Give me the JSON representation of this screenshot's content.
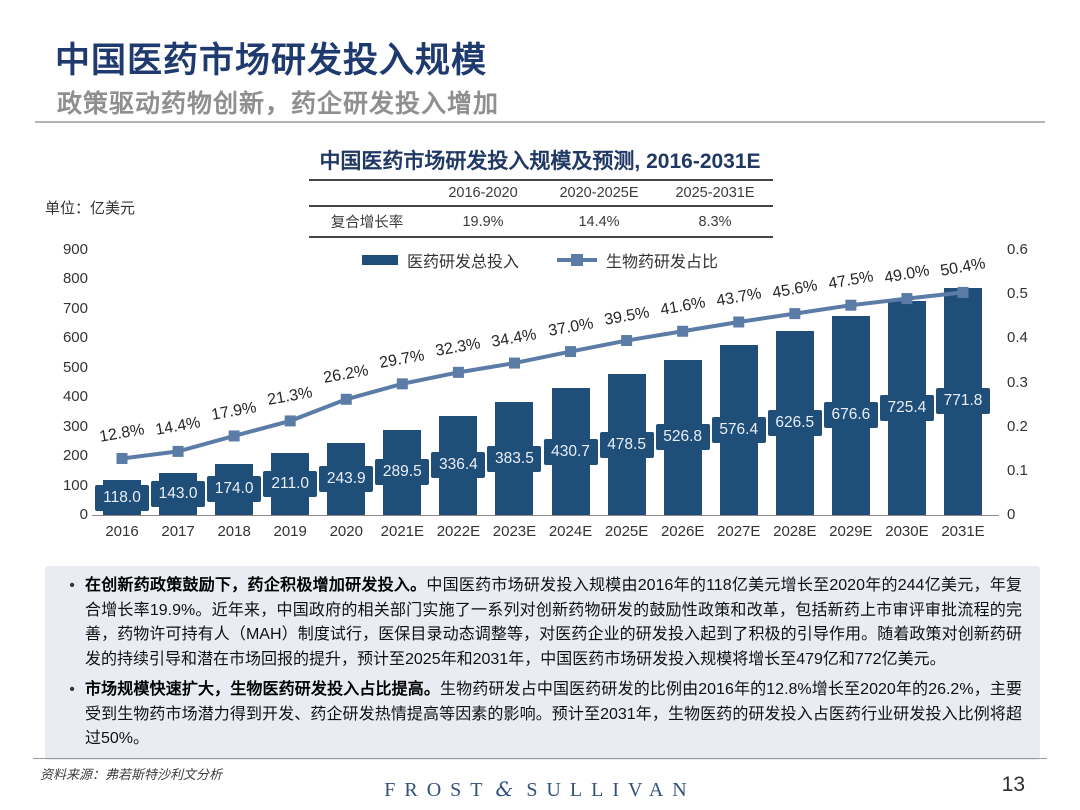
{
  "header": {
    "title": "中国医药市场研发投入规模",
    "subtitle": "政策驱动药物创新，药企研发投入增加"
  },
  "chart": {
    "title": "中国医药市场研发投入规模及预测, 2016-2031E",
    "unit_label": "单位：亿美元",
    "legend": {
      "bar_label": "医药研发总投入",
      "line_label": "生物药研发占比"
    },
    "cagr_table": {
      "row_header": "复合增长率",
      "columns": [
        "2016-2020",
        "2020-2025E",
        "2025-2031E"
      ],
      "values": [
        "19.9%",
        "14.4%",
        "8.3%"
      ]
    }
  },
  "chart_data": {
    "type": "bar",
    "title": "中国医药市场研发投入规模及预测, 2016-2031E",
    "categories": [
      "2016",
      "2017",
      "2018",
      "2019",
      "2020",
      "2021E",
      "2022E",
      "2023E",
      "2024E",
      "2025E",
      "2026E",
      "2027E",
      "2028E",
      "2029E",
      "2030E",
      "2031E"
    ],
    "series": [
      {
        "name": "医药研发总投入",
        "type": "bar",
        "axis": "left",
        "values": [
          118.0,
          143.0,
          174.0,
          211.0,
          243.9,
          289.5,
          336.4,
          383.5,
          430.7,
          478.5,
          526.8,
          576.4,
          626.5,
          676.6,
          725.4,
          771.8
        ],
        "labels": [
          "118.0",
          "143.0",
          "174.0",
          "211.0",
          "243.9",
          "289.5",
          "336.4",
          "383.5",
          "430.7",
          "478.5",
          "526.8",
          "576.4",
          "626.5",
          "676.6",
          "725.4",
          "771.8"
        ]
      },
      {
        "name": "生物药研发占比",
        "type": "line",
        "axis": "right",
        "values": [
          0.128,
          0.144,
          0.179,
          0.213,
          0.262,
          0.297,
          0.323,
          0.344,
          0.37,
          0.395,
          0.416,
          0.437,
          0.456,
          0.475,
          0.49,
          0.504
        ],
        "labels": [
          "12.8%",
          "14.4%",
          "17.9%",
          "21.3%",
          "26.2%",
          "29.7%",
          "32.3%",
          "34.4%",
          "37.0%",
          "39.5%",
          "41.6%",
          "43.7%",
          "45.6%",
          "47.5%",
          "49.0%",
          "50.4%"
        ]
      }
    ],
    "left_axis": {
      "min": 0,
      "max": 900,
      "step": 100,
      "ticks": [
        "0",
        "100",
        "200",
        "300",
        "400",
        "500",
        "600",
        "700",
        "800",
        "900"
      ]
    },
    "right_axis": {
      "min": 0,
      "max": 0.6,
      "step": 0.1,
      "ticks": [
        "0",
        "0.1",
        "0.2",
        "0.3",
        "0.4",
        "0.5",
        "0.6"
      ]
    },
    "legend_position": "top",
    "grid": false,
    "colors": {
      "bar": "#1F4E79",
      "line": "#5B7CA6"
    }
  },
  "bullets": {
    "bullet_char": "•",
    "items": [
      {
        "lead": "在创新药政策鼓励下，药企积极增加研发投入。",
        "text": "中国医药市场研发投入规模由2016年的118亿美元增长至2020年的244亿美元，年复合增长率19.9%。近年来，中国政府的相关部门实施了一系列对创新药物研发的鼓励性政策和改革，包括新药上市审评审批流程的完善，药物许可持有人（MAH）制度试行，医保目录动态调整等，对医药企业的研发投入起到了积极的引导作用。随着政策对创新药研发的持续引导和潜在市场回报的提升，预计至2025年和2031年，中国医药市场研发投入规模将增长至479亿和772亿美元。"
      },
      {
        "lead": "市场规模快速扩大，生物医药研发投入占比提高。",
        "text": "生物药研发占中国医药研发的比例由2016年的12.8%增长至2020年的26.2%，主要受到生物药市场潜力得到开发、药企研发热情提高等因素的影响。预计至2031年，生物医药的研发投入占医药行业研发投入比例将超过50%。"
      }
    ]
  },
  "footer": {
    "source": "资料来源：弗若斯特沙利文分析",
    "brand_left": "FROST",
    "brand_amp": "&",
    "brand_right": "SULLIVAN",
    "page_number": "13"
  }
}
